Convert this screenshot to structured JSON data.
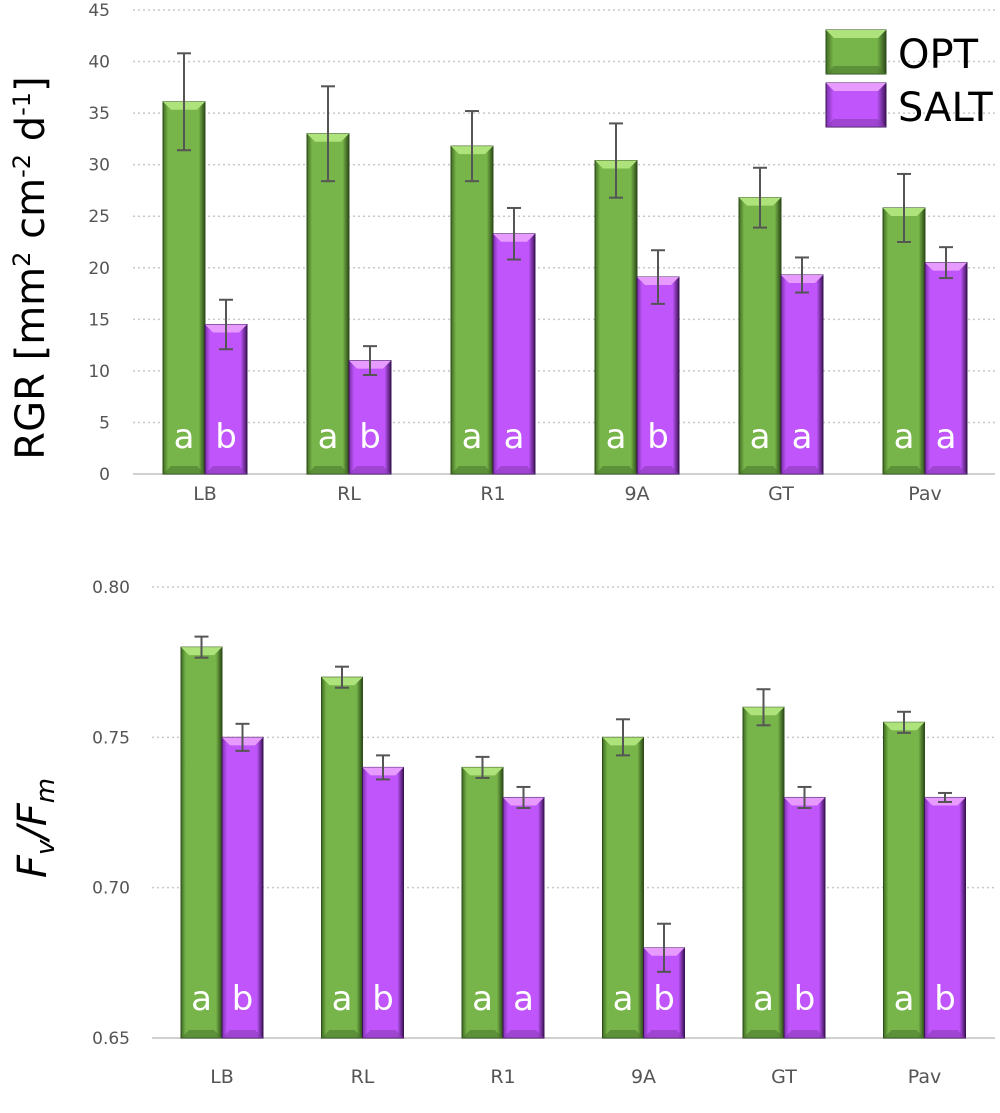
{
  "colors": {
    "OPT": "#77b54a",
    "SALT": "#bf55fb",
    "grid": "#c8c8c8",
    "error": "#555555"
  },
  "legend": {
    "entries": [
      "OPT",
      "SALT"
    ],
    "placement": "top-right"
  },
  "chart_data": [
    {
      "type": "bar",
      "title": "",
      "ylabel_main": "RGR [mm",
      "ylabel_parts": [
        "RGR [mm",
        "2",
        " cm",
        "-2",
        " d",
        "-1",
        "]"
      ],
      "xlabel": "",
      "ylim": [
        0,
        45
      ],
      "yticks": [
        "0",
        "5",
        "10",
        "15",
        "20",
        "25",
        "30",
        "35",
        "40",
        "45"
      ],
      "ytick_values": [
        0,
        5,
        10,
        15,
        20,
        25,
        30,
        35,
        40,
        45
      ],
      "grid": true,
      "categories": [
        "LB",
        "RL",
        "R1",
        "9A",
        "GT",
        "Pav"
      ],
      "series": [
        {
          "name": "OPT",
          "values": [
            36.1,
            33.0,
            31.8,
            30.4,
            26.8,
            25.8
          ],
          "errors": [
            4.7,
            4.6,
            3.4,
            3.6,
            2.9,
            3.3
          ],
          "letters": [
            "a",
            "a",
            "a",
            "a",
            "a",
            "a"
          ]
        },
        {
          "name": "SALT",
          "values": [
            14.5,
            11.0,
            23.3,
            19.1,
            19.3,
            20.5
          ],
          "errors": [
            2.4,
            1.4,
            2.5,
            2.6,
            1.7,
            1.5
          ],
          "letters": [
            "b",
            "b",
            "a",
            "b",
            "a",
            "a"
          ]
        }
      ]
    },
    {
      "type": "bar",
      "title": "",
      "ylabel_parts": [
        "F",
        "v",
        "/F",
        "m"
      ],
      "xlabel": "",
      "ylim": [
        0.65,
        0.8
      ],
      "yticks": [
        "0.65",
        "0.70",
        "0.75",
        "0.80"
      ],
      "ytick_values": [
        0.65,
        0.7,
        0.75,
        0.8
      ],
      "grid": true,
      "categories": [
        "LB",
        "RL",
        "R1",
        "9A",
        "GT",
        "Pav"
      ],
      "series": [
        {
          "name": "OPT",
          "values": [
            0.78,
            0.77,
            0.74,
            0.75,
            0.76,
            0.755
          ],
          "errors": [
            0.0035,
            0.0035,
            0.0035,
            0.006,
            0.006,
            0.0035
          ],
          "letters": [
            "a",
            "a",
            "a",
            "a",
            "a",
            "a"
          ]
        },
        {
          "name": "SALT",
          "values": [
            0.75,
            0.74,
            0.73,
            0.68,
            0.73,
            0.73
          ],
          "errors": [
            0.0045,
            0.004,
            0.0035,
            0.008,
            0.0035,
            0.0015
          ],
          "letters": [
            "b",
            "b",
            "a",
            "b",
            "b",
            "b"
          ]
        }
      ]
    }
  ]
}
